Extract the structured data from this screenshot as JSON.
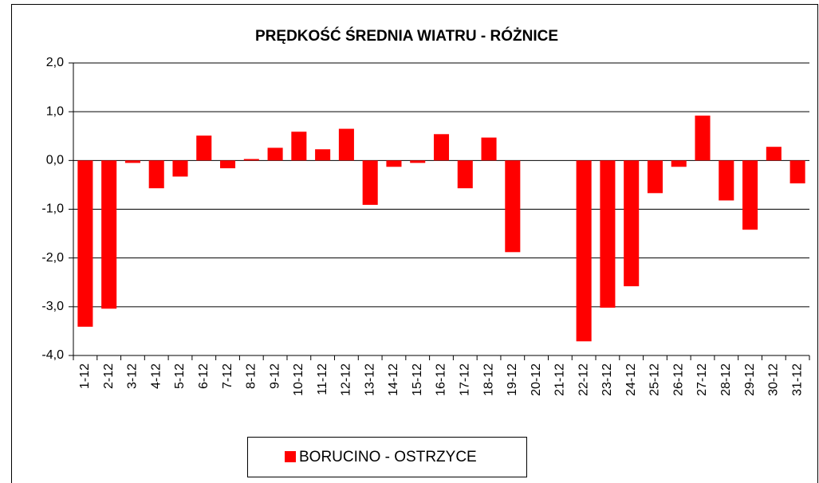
{
  "chart_data": {
    "type": "bar",
    "title": "PRĘDKOŚĆ ŚREDNIA WIATRU - RÓŻNICE",
    "categories": [
      "1-12",
      "2-12",
      "3-12",
      "4-12",
      "5-12",
      "6-12",
      "7-12",
      "8-12",
      "9-12",
      "10-12",
      "11-12",
      "12-12",
      "13-12",
      "14-12",
      "15-12",
      "16-12",
      "17-12",
      "18-12",
      "19-12",
      "20-12",
      "21-12",
      "22-12",
      "23-12",
      "24-12",
      "25-12",
      "26-12",
      "27-12",
      "28-12",
      "29-12",
      "30-12",
      "31-12"
    ],
    "series": [
      {
        "name": "BORUCINO - OSTRZYCE",
        "color": "#ff0000",
        "values": [
          -3.41,
          -3.04,
          -0.05,
          -0.57,
          -0.33,
          0.51,
          -0.16,
          0.03,
          0.26,
          0.59,
          0.23,
          0.65,
          -0.91,
          -0.13,
          -0.05,
          0.54,
          -0.57,
          0.47,
          -1.88,
          null,
          null,
          -3.71,
          -3.02,
          -2.58,
          -0.67,
          -0.13,
          0.92,
          -0.82,
          -1.42,
          0.28,
          -0.47
        ]
      }
    ],
    "ylim": [
      -4,
      2
    ],
    "yticks": [
      {
        "value": -4,
        "label": "-4,0"
      },
      {
        "value": -3,
        "label": "-3,0"
      },
      {
        "value": -2,
        "label": "-2,0"
      },
      {
        "value": -1,
        "label": "-1,0"
      },
      {
        "value": 0,
        "label": "0,0"
      },
      {
        "value": 1,
        "label": "1,0"
      },
      {
        "value": 2,
        "label": "2,0"
      }
    ],
    "grid": true,
    "legend": "bottom"
  }
}
